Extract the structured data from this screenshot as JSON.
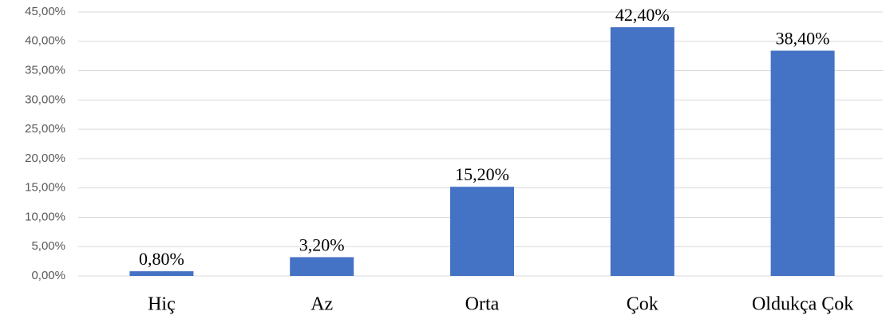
{
  "chart_data": {
    "type": "bar",
    "categories": [
      "Hiç",
      "Az",
      "Orta",
      "Çok",
      "Oldukça Çok"
    ],
    "values": [
      0.8,
      3.2,
      15.2,
      42.4,
      38.4
    ],
    "value_labels": [
      "0,80%",
      "3,20%",
      "15,20%",
      "42,40%",
      "38,40%"
    ],
    "color": "#4472c4",
    "ylim": [
      0,
      45
    ],
    "yticks": [
      {
        "value": 0,
        "label": "0,00%"
      },
      {
        "value": 5,
        "label": "5,00%"
      },
      {
        "value": 10,
        "label": "10,00%"
      },
      {
        "value": 15,
        "label": "15,00%"
      },
      {
        "value": 20,
        "label": "20,00%"
      },
      {
        "value": 25,
        "label": "25,00%"
      },
      {
        "value": 30,
        "label": "30,00%"
      },
      {
        "value": 35,
        "label": "35,00%"
      },
      {
        "value": 40,
        "label": "40,00%"
      },
      {
        "value": 45,
        "label": "45,00%"
      }
    ],
    "grid": true
  }
}
